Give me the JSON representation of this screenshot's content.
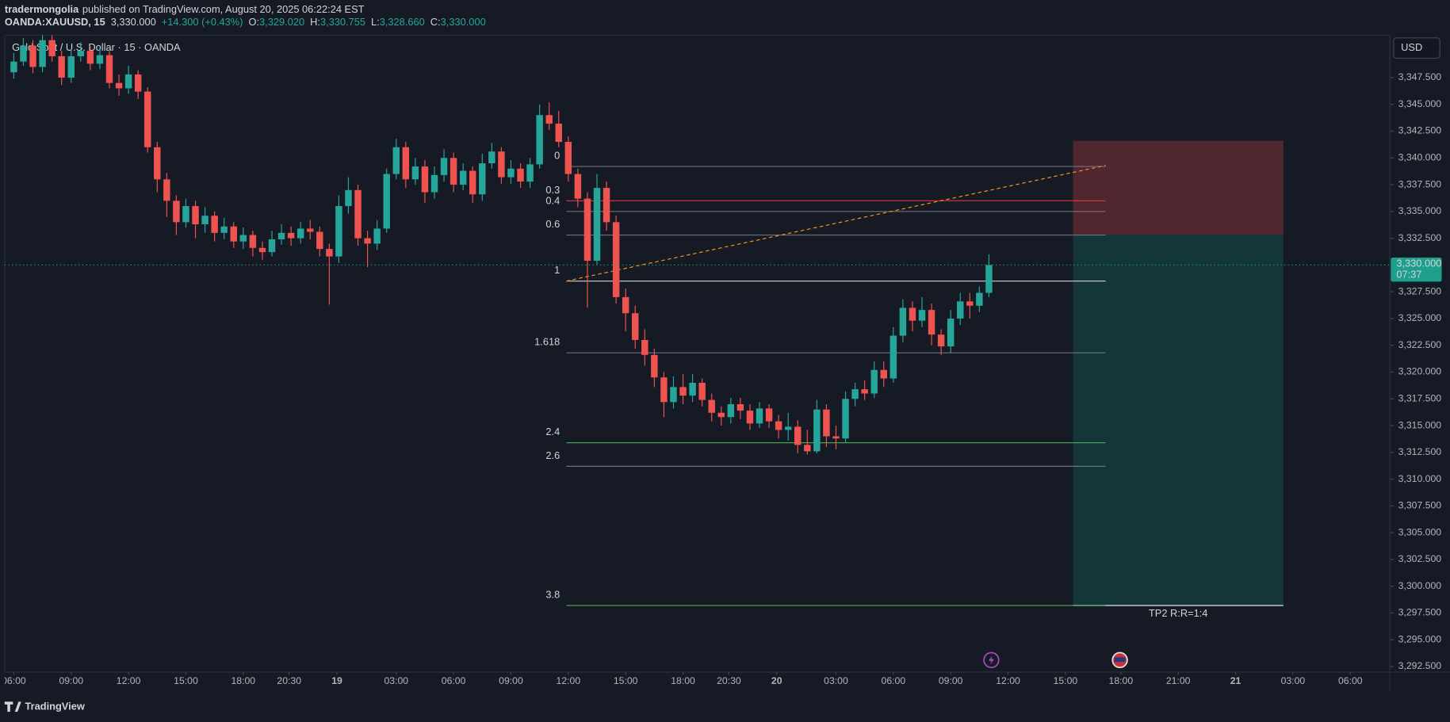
{
  "chart_data": {
    "type": "candlestick",
    "header": {
      "publisher": "tradermongolia",
      "published_text": "published on TradingView.com, August 20, 2025 06:22:24 EST",
      "symbol": "OANDA:XAUUSD, 15",
      "last": "3,330.000",
      "change": "+14.300 (+0.43%)",
      "ohlc": [
        {
          "label": "O:",
          "value": "3,329.020"
        },
        {
          "label": "H:",
          "value": "3,330.755"
        },
        {
          "label": "L:",
          "value": "3,328.660"
        },
        {
          "label": "C:",
          "value": "3,330.000"
        }
      ]
    },
    "title": "Gold Spot / U.S. Dollar · 15 · OANDA",
    "currency": "USD",
    "brand": "TradingView",
    "up_color": "#26a69a",
    "down_color": "#ef5350",
    "grid": false,
    "xlim": [
      -0.48,
      71.97
    ],
    "ylim": [
      3291.98,
      3351.47
    ],
    "xticks": [
      {
        "value": 0,
        "label": "06:00"
      },
      {
        "value": 3,
        "label": "09:00"
      },
      {
        "value": 6,
        "label": "12:00"
      },
      {
        "value": 9,
        "label": "15:00"
      },
      {
        "value": 12,
        "label": "18:00"
      },
      {
        "value": 14.4,
        "label": "20:30"
      },
      {
        "value": 16.9,
        "label": "19"
      },
      {
        "value": 20,
        "label": "03:00"
      },
      {
        "value": 23,
        "label": "06:00"
      },
      {
        "value": 26,
        "label": "09:00"
      },
      {
        "value": 29,
        "label": "12:00"
      },
      {
        "value": 32,
        "label": "15:00"
      },
      {
        "value": 35,
        "label": "18:00"
      },
      {
        "value": 37.4,
        "label": "20:30"
      },
      {
        "value": 39.9,
        "label": "20"
      },
      {
        "value": 43,
        "label": "03:00"
      },
      {
        "value": 46,
        "label": "06:00"
      },
      {
        "value": 49,
        "label": "09:00"
      },
      {
        "value": 52,
        "label": "12:00"
      },
      {
        "value": 55,
        "label": "15:00"
      },
      {
        "value": 57.9,
        "label": "18:00"
      },
      {
        "value": 60.9,
        "label": "21:00"
      },
      {
        "value": 63.9,
        "label": "21"
      },
      {
        "value": 66.9,
        "label": "03:00"
      },
      {
        "value": 69.9,
        "label": "06:00"
      }
    ],
    "yticks": [
      {
        "value": 3292.5,
        "label": "3,292.500"
      },
      {
        "value": 3295,
        "label": "3,295.000"
      },
      {
        "value": 3297.5,
        "label": "3,297.500"
      },
      {
        "value": 3300,
        "label": "3,300.000"
      },
      {
        "value": 3302.5,
        "label": "3,302.500"
      },
      {
        "value": 3305,
        "label": "3,305.000"
      },
      {
        "value": 3307.5,
        "label": "3,307.500"
      },
      {
        "value": 3310,
        "label": "3,310.000"
      },
      {
        "value": 3312.5,
        "label": "3,312.500"
      },
      {
        "value": 3315,
        "label": "3,315.000"
      },
      {
        "value": 3317.5,
        "label": "3,317.500"
      },
      {
        "value": 3320,
        "label": "3,320.000"
      },
      {
        "value": 3322.5,
        "label": "3,322.500"
      },
      {
        "value": 3325,
        "label": "3,325.000"
      },
      {
        "value": 3327.5,
        "label": "3,327.500"
      },
      {
        "value": 3332.5,
        "label": "3,332.500"
      },
      {
        "value": 3335,
        "label": "3,335.000"
      },
      {
        "value": 3337.5,
        "label": "3,337.500"
      },
      {
        "value": 3340,
        "label": "3,340.000"
      },
      {
        "value": 3342.5,
        "label": "3,342.500"
      },
      {
        "value": 3345,
        "label": "3,345.000"
      },
      {
        "value": 3347.5,
        "label": "3,347.500"
      }
    ],
    "x": [
      0,
      0.5,
      1,
      1.5,
      2,
      2.5,
      3,
      3.5,
      4,
      4.5,
      5,
      5.5,
      6,
      6.5,
      7,
      7.5,
      8,
      8.5,
      9,
      9.5,
      10,
      10.5,
      11,
      11.5,
      12,
      12.5,
      13,
      13.5,
      14,
      14.5,
      15,
      15.5,
      16,
      16.5,
      17,
      17.5,
      18,
      18.5,
      19,
      19.5,
      20,
      20.5,
      21,
      21.5,
      22,
      22.5,
      23,
      23.5,
      24,
      24.5,
      25,
      25.5,
      26,
      26.5,
      27,
      27.5,
      28,
      28.5,
      29,
      29.5,
      30,
      30.5,
      31,
      31.5,
      32,
      32.5,
      33,
      33.5,
      34,
      34.5,
      35,
      35.5,
      36,
      36.5,
      37,
      37.5,
      38,
      38.5,
      39,
      39.5,
      40,
      40.5,
      41,
      41.5,
      42,
      42.5,
      43,
      43.5,
      44,
      44.5,
      45,
      45.5,
      46,
      46.5,
      47,
      47.5,
      48,
      48.5,
      49,
      49.5,
      50,
      50.5,
      51
    ],
    "ohlc": [
      [
        3348,
        3349.8,
        3347.4,
        3349
      ],
      [
        3349,
        3351.2,
        3348.6,
        3350.5
      ],
      [
        3350.5,
        3351,
        3347.9,
        3348.5
      ],
      [
        3348.5,
        3351.8,
        3348,
        3351
      ],
      [
        3351,
        3351.5,
        3349,
        3349.5
      ],
      [
        3349.5,
        3350,
        3346.8,
        3347.5
      ],
      [
        3347.5,
        3350.2,
        3347,
        3349.5
      ],
      [
        3349.5,
        3350.8,
        3349,
        3350
      ],
      [
        3350,
        3350.4,
        3348.2,
        3348.8
      ],
      [
        3348.8,
        3350.3,
        3348.3,
        3349.6
      ],
      [
        3349.6,
        3350,
        3346.5,
        3347
      ],
      [
        3347,
        3347.8,
        3345.8,
        3346.5
      ],
      [
        3346.5,
        3348.6,
        3346,
        3347.8
      ],
      [
        3347.8,
        3348.2,
        3345.5,
        3346.2
      ],
      [
        3346.2,
        3346.6,
        3340.5,
        3341
      ],
      [
        3341,
        3341.5,
        3336.8,
        3338
      ],
      [
        3338,
        3338.6,
        3334.5,
        3336
      ],
      [
        3336,
        3336.5,
        3332.8,
        3334
      ],
      [
        3334,
        3336.2,
        3333.5,
        3335.5
      ],
      [
        3335.5,
        3336,
        3332.5,
        3333.8
      ],
      [
        3333.8,
        3335.4,
        3333,
        3334.6
      ],
      [
        3334.6,
        3335,
        3332.2,
        3333
      ],
      [
        3333,
        3334.4,
        3332.4,
        3333.6
      ],
      [
        3333.6,
        3334,
        3331.6,
        3332.2
      ],
      [
        3332.2,
        3333.5,
        3331.5,
        3332.8
      ],
      [
        3332.8,
        3333.2,
        3330.8,
        3331.6
      ],
      [
        3331.6,
        3332.2,
        3330.5,
        3331.2
      ],
      [
        3331.2,
        3333.2,
        3330.8,
        3332.4
      ],
      [
        3332.4,
        3333.8,
        3331.9,
        3333
      ],
      [
        3333,
        3333.6,
        3331.8,
        3332.5
      ],
      [
        3332.5,
        3334,
        3332,
        3333.4
      ],
      [
        3333.4,
        3334.2,
        3332.4,
        3333.1
      ],
      [
        3333.1,
        3333.6,
        3330.8,
        3331.5
      ],
      [
        3331.5,
        3332,
        3326.3,
        3330.8
      ],
      [
        3330.8,
        3336.5,
        3330.2,
        3335.5
      ],
      [
        3335.5,
        3338.2,
        3334.8,
        3337
      ],
      [
        3337,
        3337.5,
        3331.8,
        3332.5
      ],
      [
        3332.5,
        3333.2,
        3329.8,
        3332
      ],
      [
        3332,
        3334.2,
        3331.4,
        3333.4
      ],
      [
        3333.4,
        3339,
        3333,
        3338.5
      ],
      [
        3338.5,
        3341.8,
        3338,
        3341
      ],
      [
        3341,
        3341.5,
        3337.2,
        3338
      ],
      [
        3338,
        3340,
        3337.5,
        3339.2
      ],
      [
        3339.2,
        3339.8,
        3335.8,
        3336.8
      ],
      [
        3336.8,
        3339.2,
        3336.2,
        3338.4
      ],
      [
        3338.4,
        3340.8,
        3337.8,
        3340
      ],
      [
        3340,
        3340.5,
        3336.8,
        3337.5
      ],
      [
        3337.5,
        3339.5,
        3337,
        3338.8
      ],
      [
        3338.8,
        3339.2,
        3335.8,
        3336.6
      ],
      [
        3336.6,
        3340.4,
        3336,
        3339.5
      ],
      [
        3339.5,
        3341.4,
        3339,
        3340.6
      ],
      [
        3340.6,
        3341,
        3337.6,
        3338.2
      ],
      [
        3338.2,
        3339.8,
        3337.6,
        3339
      ],
      [
        3339,
        3339.5,
        3337.2,
        3337.8
      ],
      [
        3337.8,
        3340,
        3337.2,
        3339.4
      ],
      [
        3339.4,
        3345,
        3339,
        3344
      ],
      [
        3344,
        3345.2,
        3342.6,
        3343.2
      ],
      [
        3343.2,
        3344.4,
        3341,
        3341.5
      ],
      [
        3341.5,
        3342,
        3337.8,
        3338.5
      ],
      [
        3338.5,
        3339,
        3335.4,
        3336.2
      ],
      [
        3336.2,
        3336.8,
        3326,
        3330.4
      ],
      [
        3330.4,
        3338.5,
        3330,
        3337.2
      ],
      [
        3337.2,
        3337.8,
        3333.2,
        3334
      ],
      [
        3334,
        3334.6,
        3326.4,
        3327
      ],
      [
        3327,
        3327.8,
        3323.8,
        3325.5
      ],
      [
        3325.5,
        3326.2,
        3322.2,
        3323
      ],
      [
        3323,
        3324,
        3320.6,
        3321.6
      ],
      [
        3321.6,
        3322.2,
        3318.6,
        3319.5
      ],
      [
        3319.5,
        3320,
        3315.8,
        3317.2
      ],
      [
        3317.2,
        3319.6,
        3316.6,
        3318.6
      ],
      [
        3318.6,
        3319.8,
        3317,
        3317.8
      ],
      [
        3317.8,
        3319.8,
        3317.2,
        3319
      ],
      [
        3319,
        3319.4,
        3316.8,
        3317.4
      ],
      [
        3317.4,
        3318,
        3315.4,
        3316.2
      ],
      [
        3316.2,
        3316.8,
        3315,
        3315.8
      ],
      [
        3315.8,
        3317.6,
        3315.2,
        3317
      ],
      [
        3317,
        3317.6,
        3315.6,
        3316.4
      ],
      [
        3316.4,
        3317,
        3314.6,
        3315.2
      ],
      [
        3315.2,
        3317.2,
        3314.8,
        3316.6
      ],
      [
        3316.6,
        3317,
        3314.8,
        3315.4
      ],
      [
        3315.4,
        3316,
        3313.8,
        3314.6
      ],
      [
        3314.6,
        3316.2,
        3313.6,
        3314.9
      ],
      [
        3314.9,
        3315.5,
        3312.4,
        3313.2
      ],
      [
        3313.2,
        3314.6,
        3312.3,
        3312.6
      ],
      [
        3312.6,
        3317.4,
        3312.4,
        3316.5
      ],
      [
        3316.5,
        3317,
        3313,
        3314
      ],
      [
        3314,
        3315,
        3312.8,
        3313.8
      ],
      [
        3313.8,
        3318.2,
        3313.4,
        3317.5
      ],
      [
        3317.5,
        3319,
        3316.8,
        3318.4
      ],
      [
        3318.4,
        3319.2,
        3317.4,
        3318
      ],
      [
        3318,
        3321,
        3317.6,
        3320.2
      ],
      [
        3320.2,
        3321,
        3318.6,
        3319.4
      ],
      [
        3319.4,
        3324.2,
        3319,
        3323.4
      ],
      [
        3323.4,
        3326.8,
        3322.8,
        3326
      ],
      [
        3326,
        3326.6,
        3323.8,
        3324.8
      ],
      [
        3324.8,
        3327,
        3324.2,
        3325.8
      ],
      [
        3325.8,
        3326.4,
        3322.5,
        3323.5
      ],
      [
        3323.5,
        3324,
        3321.6,
        3322.4
      ],
      [
        3322.4,
        3325.8,
        3321.8,
        3325
      ],
      [
        3325,
        3327.4,
        3324.4,
        3326.6
      ],
      [
        3326.6,
        3327.4,
        3325,
        3326.2
      ],
      [
        3326.2,
        3328,
        3325.6,
        3327.4
      ],
      [
        3327.4,
        3331,
        3327,
        3330
      ]
    ],
    "last_price": 3330,
    "last_price_label": "3,330.000",
    "countdown": "07:37",
    "last_price_color": "#1e9e8c",
    "fib": {
      "x_range": [
        28.9,
        57.1
      ],
      "levels": [
        {
          "level": 0,
          "price": 3339.2,
          "color": "#787b86"
        },
        {
          "level": 0.3,
          "price": 3336.0,
          "color": "#f23645"
        },
        {
          "level": 0.4,
          "price": 3335.0,
          "color": "#787b86"
        },
        {
          "level": 0.6,
          "price": 3332.8,
          "color": "#787b86"
        },
        {
          "level": 1,
          "price": 3328.5,
          "color": "#d1d4dc"
        },
        {
          "level": 1.618,
          "price": 3321.8,
          "color": "#787b86"
        },
        {
          "level": 2.4,
          "price": 3313.4,
          "color": "#4caf50"
        },
        {
          "level": 2.6,
          "price": 3311.2,
          "color": "#787b86"
        },
        {
          "level": 3.8,
          "price": 3298.2,
          "color": "#4caf50"
        }
      ]
    },
    "trendline": {
      "x": [
        28.9,
        57.1
      ],
      "y": [
        3328.5,
        3339.3
      ],
      "color": "#f7931a"
    },
    "position": {
      "entry": 3332.8,
      "stop": 3341.6,
      "target": 3298.2,
      "x_range": [
        55.4,
        66.4
      ],
      "stop_color": "#5a2a30",
      "target_color": "#143a3c",
      "label": "TP2 R:R=1:4"
    }
  }
}
